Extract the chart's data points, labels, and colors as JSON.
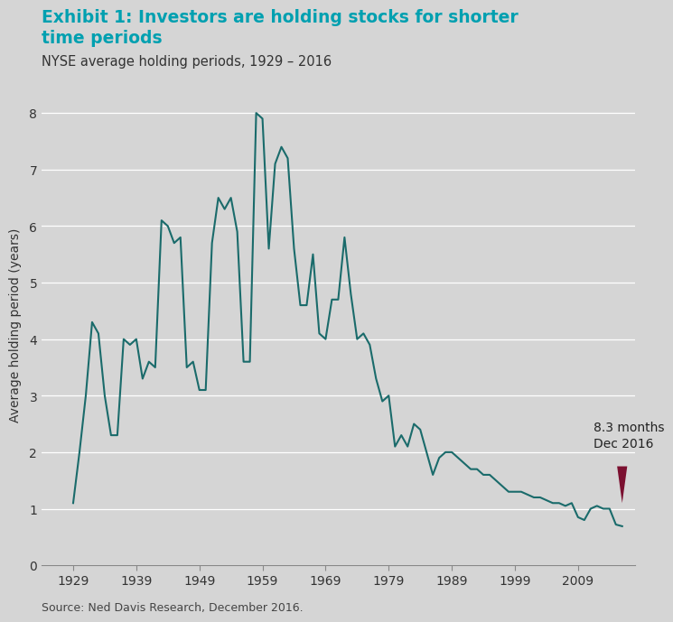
{
  "title_bold": "Exhibit 1: Investors are holding stocks for shorter\ntime periods",
  "title_subtitle": "NYSE average holding periods, 1929 – 2016",
  "ylabel": "Average holding period (years)",
  "source": "Source: Ned Davis Research, December 2016.",
  "annotation_text": "8.3 months\nDec 2016",
  "background_color": "#d5d5d5",
  "plot_bg_color": "#d5d5d5",
  "line_color": "#1a6b6b",
  "title_color": "#00a0b0",
  "subtitle_color": "#333333",
  "annotation_arrow_color": "#7b1030",
  "ylim": [
    0,
    8.5
  ],
  "yticks": [
    0,
    1,
    2,
    3,
    4,
    5,
    6,
    7,
    8
  ],
  "xticks": [
    1929,
    1939,
    1949,
    1959,
    1969,
    1979,
    1989,
    1999,
    2009
  ],
  "years": [
    1929,
    1930,
    1931,
    1932,
    1933,
    1934,
    1935,
    1936,
    1937,
    1938,
    1939,
    1940,
    1941,
    1942,
    1943,
    1944,
    1945,
    1946,
    1947,
    1948,
    1949,
    1950,
    1951,
    1952,
    1953,
    1954,
    1955,
    1956,
    1957,
    1958,
    1959,
    1960,
    1961,
    1962,
    1963,
    1964,
    1965,
    1966,
    1967,
    1968,
    1969,
    1970,
    1971,
    1972,
    1973,
    1974,
    1975,
    1976,
    1977,
    1978,
    1979,
    1980,
    1981,
    1982,
    1983,
    1984,
    1985,
    1986,
    1987,
    1988,
    1989,
    1990,
    1991,
    1992,
    1993,
    1994,
    1995,
    1996,
    1997,
    1998,
    1999,
    2000,
    2001,
    2002,
    2003,
    2004,
    2005,
    2006,
    2007,
    2008,
    2009,
    2010,
    2011,
    2012,
    2013,
    2014,
    2015,
    2016
  ],
  "values": [
    1.1,
    2.0,
    3.0,
    4.3,
    4.1,
    3.0,
    2.3,
    2.3,
    4.0,
    3.9,
    4.0,
    3.3,
    3.6,
    3.5,
    6.1,
    6.0,
    5.7,
    5.8,
    3.5,
    3.6,
    3.1,
    3.1,
    5.7,
    6.5,
    6.3,
    6.5,
    5.9,
    3.6,
    3.6,
    8.0,
    7.9,
    5.6,
    7.1,
    7.4,
    7.2,
    5.6,
    4.6,
    4.6,
    5.5,
    4.1,
    4.0,
    4.7,
    4.7,
    5.8,
    4.8,
    4.0,
    4.1,
    3.9,
    3.3,
    2.9,
    3.0,
    2.1,
    2.3,
    2.1,
    2.5,
    2.4,
    2.0,
    1.6,
    1.9,
    2.0,
    2.0,
    1.9,
    1.8,
    1.7,
    1.7,
    1.6,
    1.6,
    1.5,
    1.4,
    1.3,
    1.3,
    1.3,
    1.25,
    1.2,
    1.2,
    1.15,
    1.1,
    1.1,
    1.05,
    1.1,
    0.85,
    0.8,
    1.0,
    1.05,
    1.0,
    1.0,
    0.72,
    0.69
  ]
}
